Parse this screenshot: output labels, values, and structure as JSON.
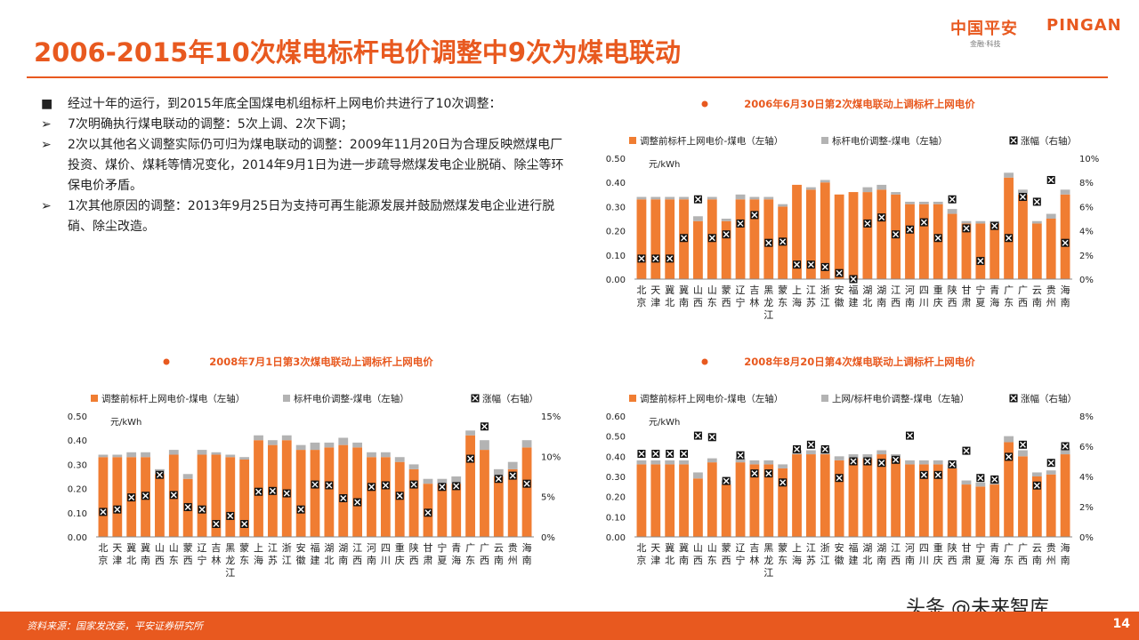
{
  "header": {
    "title": "2006-2015年10次煤电标杆电价调整中9次为煤电联动",
    "logo_cn": "中国平安",
    "logo_en": "PINGAN",
    "logo_sub": "金融·科技"
  },
  "bullets": [
    {
      "marker": "■",
      "text": "经过十年的运行，到2015年底全国煤电机组标杆上网电价共进行了10次调整："
    },
    {
      "marker": "➢",
      "text": "7次明确执行煤电联动的调整：5次上调、2次下调；"
    },
    {
      "marker": "➢",
      "text": "2次以其他名义调整实际仍可归为煤电联动的调整：2009年11月20日为合理反映燃煤电厂投资、煤价、煤耗等情况变化，2014年9月1日为进一步疏导燃煤发电企业脱硝、除尘等环保电价矛盾。"
    },
    {
      "marker": "➢",
      "text": "1次其他原因的调整：2013年9月25日为支持可再生能源发展并鼓励燃煤发电企业进行脱硝、除尘改造。"
    }
  ],
  "footer": {
    "source": "资料来源：国家发改委，平安证券研究所",
    "page": "14"
  },
  "watermark": "头条 @未来智库",
  "colors": {
    "accent": "#e8591f",
    "base": "#f07d32",
    "adj": "#b3b3b3"
  },
  "chart_data": [
    {
      "type": "bar",
      "stacked": true,
      "title": "2006年6月30日第2次煤电联动上调标杆上网电价",
      "unit": "元/kWh",
      "legend_position": "top",
      "grid": false,
      "legend": [
        "调整前标杆上网电价-煤电（左轴）",
        "标杆电价调整-煤电（左轴）",
        "涨幅（右轴）"
      ],
      "categories": [
        "北京",
        "天津",
        "冀北",
        "冀南",
        "山西",
        "山东",
        "蒙西",
        "辽宁",
        "吉林",
        "黑龙江",
        "蒙东",
        "上海",
        "江苏",
        "浙江",
        "安徽",
        "福建",
        "湖北",
        "湖南",
        "江西",
        "河南",
        "四川",
        "重庆",
        "陕西",
        "甘肃",
        "宁夏",
        "青海",
        "广东",
        "广西",
        "云南",
        "贵州",
        "海南"
      ],
      "series": [
        {
          "name": "调整前标杆上网电价-煤电（左轴）",
          "axis": "left",
          "values": [
            0.33,
            0.33,
            0.33,
            0.33,
            0.24,
            0.33,
            0.24,
            0.33,
            0.33,
            0.33,
            0.3,
            0.39,
            0.37,
            0.4,
            0.35,
            0.36,
            0.36,
            0.37,
            0.35,
            0.31,
            0.31,
            0.31,
            0.27,
            0.23,
            0.23,
            0.23,
            0.42,
            0.35,
            0.23,
            0.25,
            0.35
          ]
        },
        {
          "name": "标杆电价调整-煤电（左轴）",
          "axis": "left",
          "values": [
            0.01,
            0.01,
            0.01,
            0.01,
            0.02,
            0.01,
            0.01,
            0.02,
            0.01,
            0.01,
            0.01,
            0.0,
            0.01,
            0.01,
            0.0,
            0.0,
            0.02,
            0.02,
            0.01,
            0.01,
            0.01,
            0.01,
            0.02,
            0.01,
            0.01,
            0.01,
            0.02,
            0.02,
            0.01,
            0.02,
            0.02
          ]
        },
        {
          "name": "涨幅（右轴）",
          "axis": "right",
          "type": "marker",
          "values": [
            1.7,
            1.7,
            1.7,
            3.4,
            6.6,
            3.4,
            3.7,
            4.6,
            5.3,
            3.0,
            3.1,
            1.2,
            1.2,
            1.0,
            0.5,
            0.0,
            4.6,
            5.1,
            3.7,
            4.1,
            4.7,
            3.4,
            6.6,
            4.2,
            1.5,
            4.4,
            3.4,
            6.8,
            6.4,
            8.2,
            3.0
          ]
        }
      ],
      "ylim_left": [
        0,
        0.5
      ],
      "ylim_right": [
        0,
        10
      ],
      "yticks_left": [
        "0.00",
        "0.10",
        "0.20",
        "0.30",
        "0.40",
        "0.50"
      ],
      "yticks_right": [
        "0%",
        "2%",
        "4%",
        "6%",
        "8%",
        "10%"
      ]
    },
    {
      "type": "bar",
      "stacked": true,
      "title": "2008年7月1日第3次煤电联动上调标杆上网电价",
      "unit": "元/kWh",
      "legend_position": "top",
      "grid": false,
      "legend": [
        "调整前标杆上网电价-煤电（左轴）",
        "标杆电价调整-煤电（左轴）",
        "涨幅（右轴）"
      ],
      "categories": [
        "北京",
        "天津",
        "冀北",
        "冀南",
        "山西",
        "山东",
        "蒙西",
        "辽宁",
        "吉林",
        "黑龙江",
        "蒙东",
        "上海",
        "江苏",
        "浙江",
        "安徽",
        "福建",
        "湖北",
        "湖南",
        "江西",
        "河南",
        "四川",
        "重庆",
        "陕西",
        "甘肃",
        "宁夏",
        "青海",
        "广东",
        "广西",
        "云南",
        "贵州",
        "海南"
      ],
      "series": [
        {
          "name": "调整前标杆上网电价-煤电（左轴）",
          "axis": "left",
          "values": [
            0.33,
            0.33,
            0.33,
            0.33,
            0.26,
            0.34,
            0.24,
            0.34,
            0.34,
            0.33,
            0.32,
            0.4,
            0.38,
            0.4,
            0.36,
            0.36,
            0.37,
            0.38,
            0.37,
            0.33,
            0.33,
            0.31,
            0.28,
            0.22,
            0.22,
            0.22,
            0.42,
            0.36,
            0.25,
            0.28,
            0.37
          ]
        },
        {
          "name": "标杆电价调整-煤电（左轴）",
          "axis": "left",
          "values": [
            0.01,
            0.01,
            0.02,
            0.02,
            0.02,
            0.02,
            0.02,
            0.02,
            0.01,
            0.01,
            0.01,
            0.02,
            0.02,
            0.02,
            0.02,
            0.03,
            0.02,
            0.03,
            0.02,
            0.02,
            0.02,
            0.02,
            0.02,
            0.02,
            0.02,
            0.03,
            0.02,
            0.04,
            0.03,
            0.03,
            0.03
          ]
        },
        {
          "name": "涨幅（右轴）",
          "axis": "right",
          "type": "marker",
          "values": [
            3.1,
            3.4,
            4.9,
            5.1,
            7.7,
            5.2,
            3.7,
            3.4,
            1.6,
            2.6,
            1.6,
            5.6,
            5.7,
            5.4,
            3.4,
            6.5,
            6.4,
            4.8,
            4.3,
            6.2,
            6.4,
            5.1,
            6.5,
            3.0,
            6.2,
            6.3,
            9.7,
            13.7,
            7.2,
            7.6,
            6.6
          ]
        }
      ],
      "ylim_left": [
        0,
        0.5
      ],
      "ylim_right": [
        0,
        15
      ],
      "yticks_left": [
        "0.00",
        "0.10",
        "0.20",
        "0.30",
        "0.40",
        "0.50"
      ],
      "yticks_right": [
        "0%",
        "5%",
        "10%",
        "15%"
      ]
    },
    {
      "type": "bar",
      "stacked": true,
      "title": "2008年8月20日第4次煤电联动上调标杆上网电价",
      "unit": "元/kWh",
      "legend_position": "top",
      "grid": false,
      "legend": [
        "调整前标杆上网电价-煤电（左轴）",
        "上网/标杆电价调整-煤电（左轴）",
        "涨幅（右轴）"
      ],
      "categories": [
        "北京",
        "天津",
        "冀北",
        "冀南",
        "山西",
        "山东",
        "蒙西",
        "辽宁",
        "吉林",
        "黑龙江",
        "蒙东",
        "上海",
        "江苏",
        "浙江",
        "安徽",
        "福建",
        "湖北",
        "湖南",
        "江西",
        "河南",
        "四川",
        "重庆",
        "陕西",
        "甘肃",
        "宁夏",
        "青海",
        "广东",
        "广西",
        "云南",
        "贵州",
        "海南"
      ],
      "series": [
        {
          "name": "调整前标杆上网电价-煤电（左轴）",
          "axis": "left",
          "values": [
            0.36,
            0.36,
            0.36,
            0.36,
            0.29,
            0.37,
            0.26,
            0.37,
            0.36,
            0.36,
            0.34,
            0.41,
            0.41,
            0.41,
            0.38,
            0.39,
            0.39,
            0.41,
            0.39,
            0.36,
            0.36,
            0.36,
            0.34,
            0.26,
            0.25,
            0.26,
            0.47,
            0.4,
            0.3,
            0.31,
            0.41
          ]
        },
        {
          "name": "上网/标杆电价调整-煤电（左轴）",
          "axis": "left",
          "values": [
            0.02,
            0.02,
            0.02,
            0.02,
            0.03,
            0.02,
            0.02,
            0.02,
            0.02,
            0.02,
            0.02,
            0.02,
            0.02,
            0.03,
            0.02,
            0.02,
            0.02,
            0.02,
            0.02,
            0.02,
            0.02,
            0.02,
            0.02,
            0.02,
            0.02,
            0.02,
            0.03,
            0.03,
            0.02,
            0.02,
            0.03
          ]
        },
        {
          "name": "涨幅（右轴）",
          "axis": "right",
          "type": "marker",
          "values": [
            5.5,
            5.5,
            5.5,
            5.5,
            6.7,
            6.6,
            3.7,
            5.4,
            4.2,
            4.2,
            3.6,
            5.8,
            6.1,
            5.8,
            3.9,
            5.0,
            5.0,
            4.9,
            5.1,
            6.7,
            4.1,
            4.1,
            4.8,
            5.7,
            3.9,
            3.8,
            5.3,
            6.1,
            3.4,
            4.9,
            6.0
          ]
        }
      ],
      "ylim_left": [
        0,
        0.6
      ],
      "ylim_right": [
        0,
        8
      ],
      "yticks_left": [
        "0.00",
        "0.10",
        "0.20",
        "0.30",
        "0.40",
        "0.50",
        "0.60"
      ],
      "yticks_right": [
        "0%",
        "2%",
        "4%",
        "6%",
        "8%"
      ]
    }
  ]
}
